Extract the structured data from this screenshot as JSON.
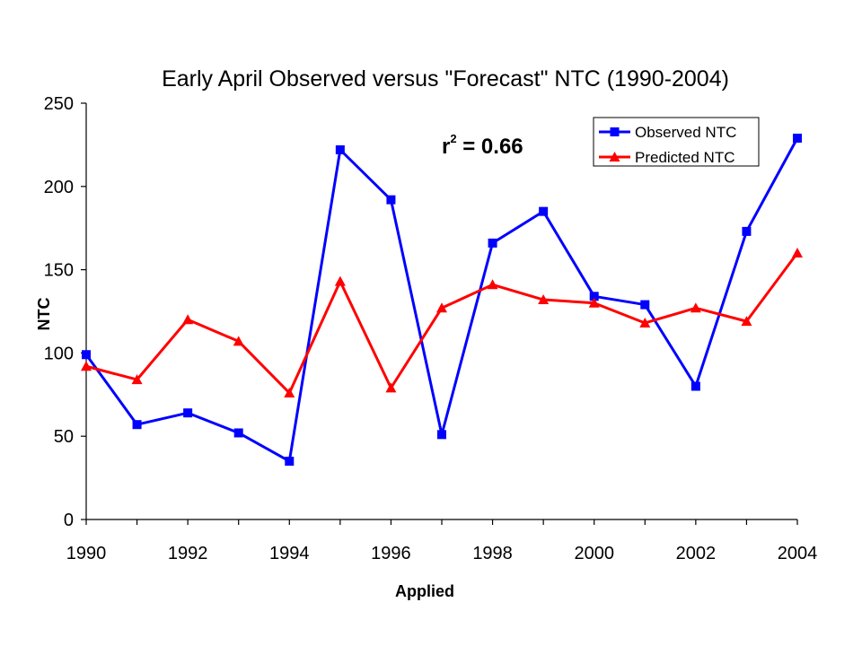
{
  "chart_data": {
    "type": "line",
    "title": "Early April Observed versus \"Forecast\" NTC (1990-2004)",
    "xlabel": "Applied",
    "ylabel": "NTC",
    "x": [
      1990,
      1991,
      1992,
      1993,
      1994,
      1995,
      1996,
      1997,
      1998,
      1999,
      2000,
      2001,
      2002,
      2003,
      2004
    ],
    "x_tick_labels": [
      "1990",
      "1992",
      "1994",
      "1996",
      "1998",
      "2000",
      "2002",
      "2004"
    ],
    "y_tick_labels": [
      "0",
      "50",
      "100",
      "150",
      "200",
      "250"
    ],
    "xlim": [
      1990,
      2004
    ],
    "ylim": [
      0,
      250
    ],
    "grid": false,
    "legend_position": "top-right",
    "series": [
      {
        "name": "Observed NTC",
        "color": "#0000ff",
        "marker": "square",
        "values": [
          99,
          57,
          64,
          52,
          35,
          222,
          192,
          51,
          166,
          185,
          134,
          129,
          80,
          173,
          229
        ]
      },
      {
        "name": "Predicted NTC",
        "color": "#ff0000",
        "marker": "triangle",
        "values": [
          92,
          84,
          120,
          107,
          76,
          143,
          79,
          127,
          141,
          132,
          130,
          118,
          127,
          119,
          160
        ]
      }
    ],
    "annotation": {
      "base": "r",
      "superscript": "2",
      "rest": " = 0.66"
    }
  }
}
